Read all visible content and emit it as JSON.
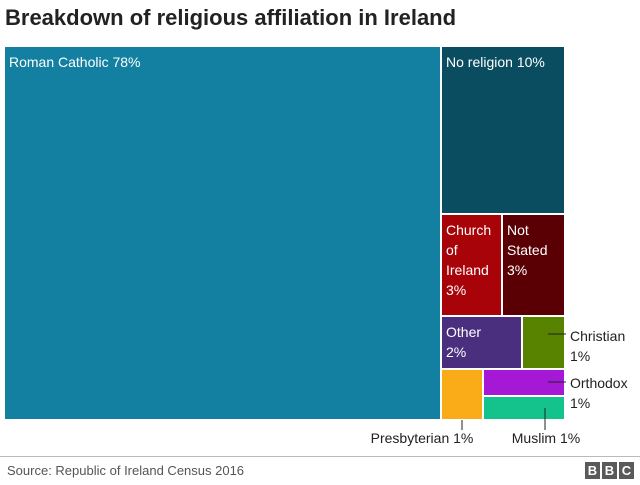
{
  "title": "Breakdown of religious affiliation in Ireland",
  "source": "Source: Republic of Ireland Census 2016",
  "logo": {
    "letters": [
      "B",
      "B",
      "C"
    ]
  },
  "chart_data": {
    "type": "treemap",
    "unit": "%",
    "items": [
      {
        "name": "Roman Catholic",
        "value": 78,
        "label_lines": [
          "Roman Catholic 78%"
        ],
        "color": "#1380A1"
      },
      {
        "name": "No religion",
        "value": 10,
        "label_lines": [
          "No religion 10%"
        ],
        "color": "#0A4D61"
      },
      {
        "name": "Church of Ireland",
        "value": 3,
        "label_lines": [
          "Church",
          "of",
          "Ireland",
          "3%"
        ],
        "color": "#A80309"
      },
      {
        "name": "Not Stated",
        "value": 3,
        "label_lines": [
          "Not",
          "Stated",
          "3%"
        ],
        "color": "#5A0004"
      },
      {
        "name": "Other",
        "value": 2,
        "label_lines": [
          "Other",
          "2%"
        ],
        "color": "#4A2F7F"
      },
      {
        "name": "Christian",
        "value": 1,
        "label_lines": [
          "Christian",
          "1%"
        ],
        "color": "#588300"
      },
      {
        "name": "Presbyterian",
        "value": 1,
        "label_lines": [
          "Presbyterian 1%"
        ],
        "color": "#FAAB18"
      },
      {
        "name": "Orthodox",
        "value": 1,
        "label_lines": [
          "Orthodox",
          "1%"
        ],
        "color": "#A418D6"
      },
      {
        "name": "Muslim",
        "value": 1,
        "label_lines": [
          "Muslim 1%"
        ],
        "color": "#14C28C"
      }
    ]
  }
}
